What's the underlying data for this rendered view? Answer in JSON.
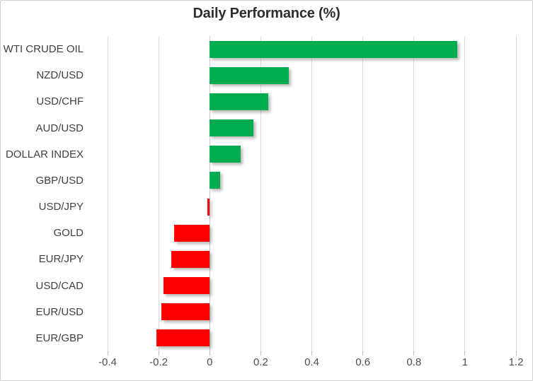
{
  "chart_data": {
    "type": "bar",
    "orientation": "horizontal",
    "title": "Daily Performance (%)",
    "categories": [
      "WTI CRUDE OIL",
      "NZD/USD",
      "USD/CHF",
      "AUD/USD",
      "DOLLAR INDEX",
      "GBP/USD",
      "USD/JPY",
      "GOLD",
      "EUR/JPY",
      "USD/CAD",
      "EUR/USD",
      "EUR/GBP"
    ],
    "values": [
      0.97,
      0.31,
      0.23,
      0.17,
      0.12,
      0.04,
      -0.01,
      -0.14,
      -0.15,
      -0.18,
      -0.19,
      -0.21
    ],
    "xlabel": "",
    "ylabel": "",
    "xlim": [
      -0.4,
      1.2
    ],
    "xtick_labels": [
      "-0.4",
      "-0.2",
      "0",
      "0.2",
      "0.4",
      "0.6",
      "0.8",
      "1",
      "1.2"
    ],
    "xtick_values": [
      -0.4,
      -0.2,
      0,
      0.2,
      0.4,
      0.6,
      0.8,
      1.0,
      1.2
    ],
    "grid": true,
    "legend": false,
    "colors": {
      "positive_bar": "#00ac4e",
      "negative_bar": "#ff0000",
      "gridline": "#d9d9d9",
      "zero_line": "#c8c8c8",
      "tick_mark": "#bfbfbf",
      "title_text": "#2e2e2e",
      "category_text": "#404040",
      "axis_text": "#4d4d4d",
      "border": "#d2d0ce",
      "background": "#ffffff"
    }
  }
}
